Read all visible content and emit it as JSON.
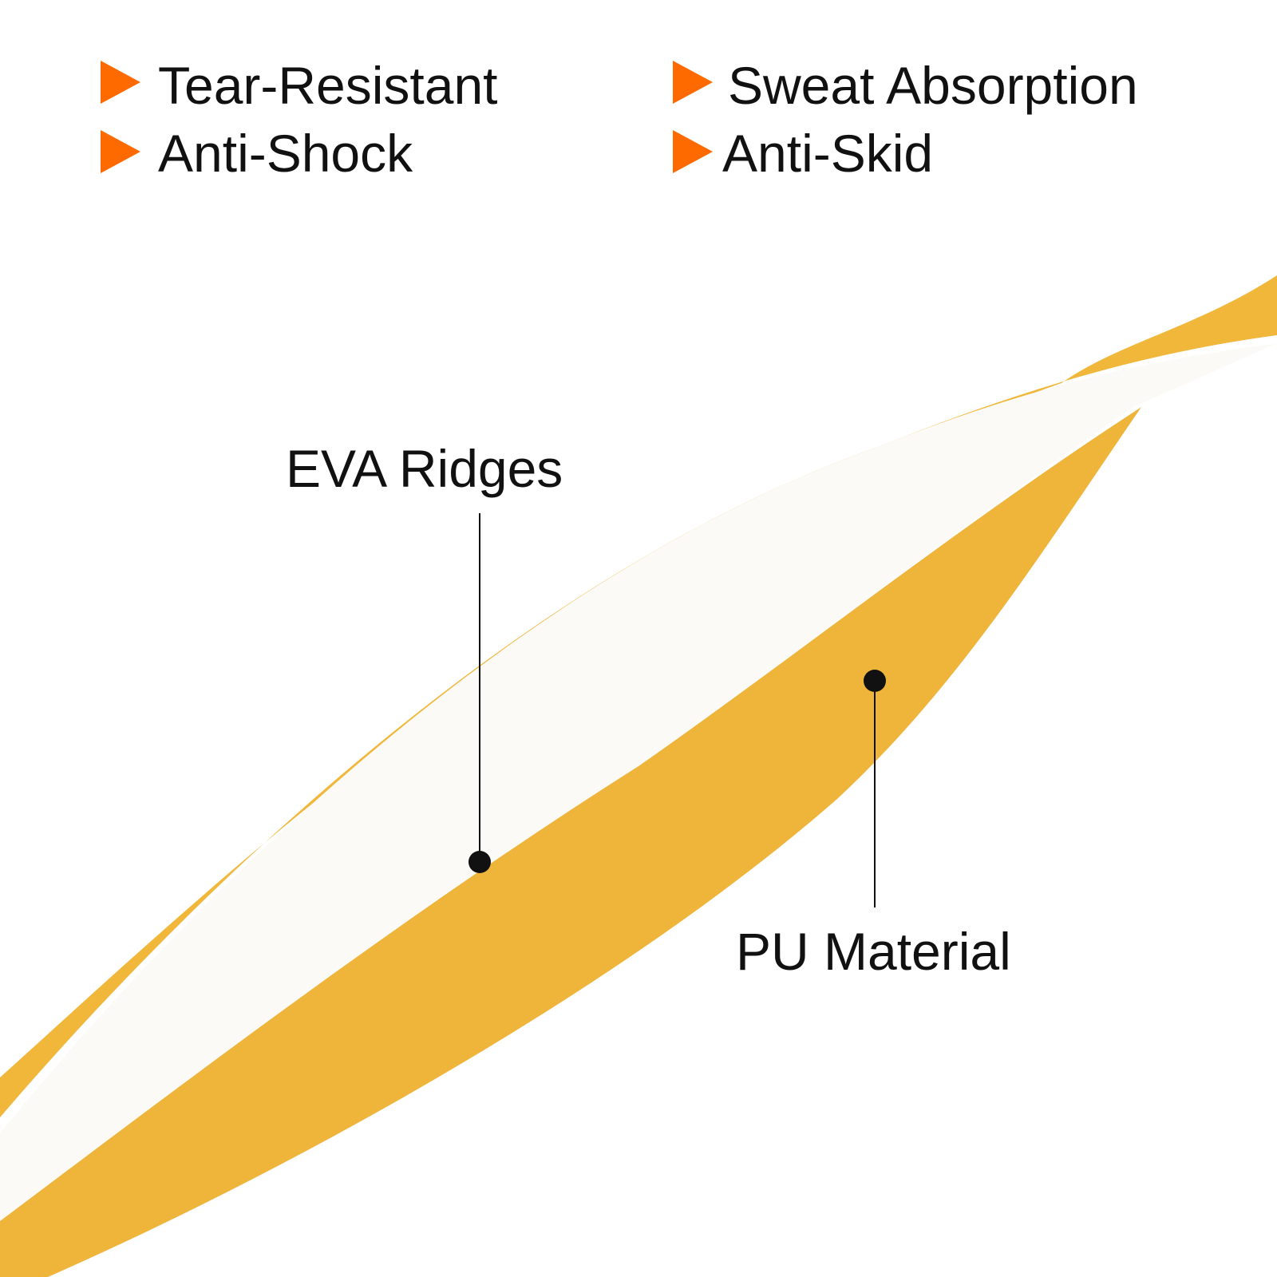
{
  "features": [
    "Tear-Resistant",
    "Sweat Absorption",
    "Anti-Shock",
    "Anti-Skid"
  ],
  "callouts": {
    "eva": "EVA Ridges",
    "pu": "PU Material"
  }
}
